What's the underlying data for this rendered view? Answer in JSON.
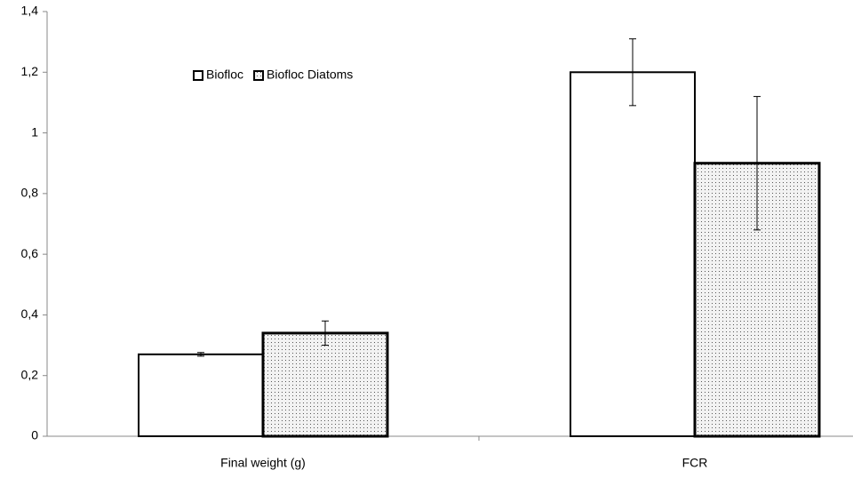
{
  "chart_data": {
    "type": "bar",
    "categories": [
      "Final weight (g)",
      "FCR"
    ],
    "series": [
      {
        "name": "Biofloc",
        "color": "#ffffff",
        "values": [
          0.27,
          1.2
        ],
        "errors": [
          0.006,
          0.11
        ]
      },
      {
        "name": "Biofloc Diatoms",
        "color": "#e6e6e6",
        "pattern": "dots",
        "values": [
          0.34,
          0.9
        ],
        "errors": [
          0.04,
          0.22
        ]
      }
    ],
    "ylim": [
      0,
      1.4
    ],
    "yticks": [
      0,
      {
        "value": 0.2,
        "label": "0,2"
      },
      {
        "value": 0.4,
        "label": "0,4"
      },
      {
        "value": 0.6,
        "label": "0,6"
      },
      {
        "value": 0.8,
        "label": "0,8"
      },
      1,
      {
        "value": 1.2,
        "label": "1,2"
      },
      {
        "value": 1.4,
        "label": "1,4"
      }
    ],
    "grid": false,
    "legend": "upper-left"
  }
}
